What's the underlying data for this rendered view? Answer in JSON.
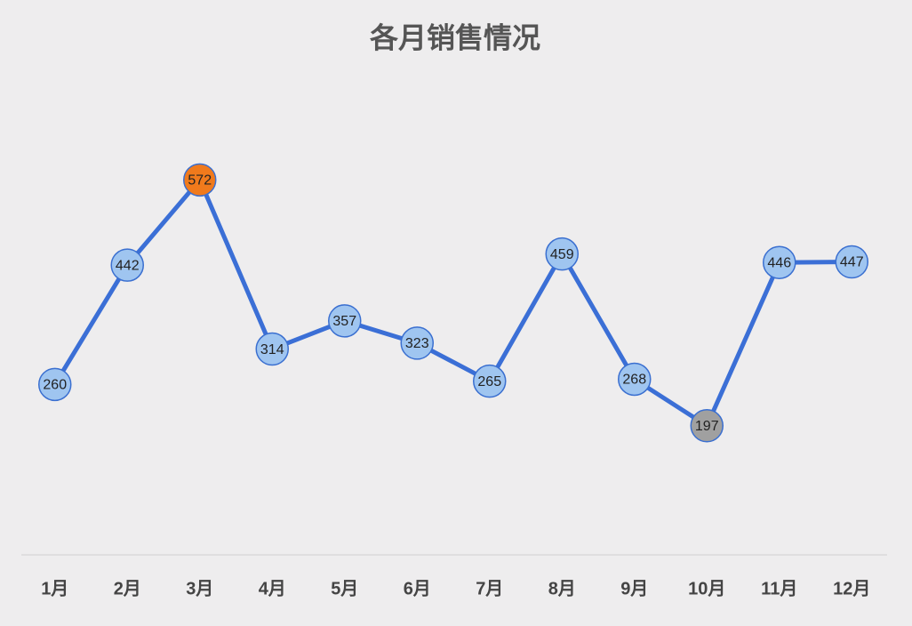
{
  "chart_data": {
    "type": "line",
    "title": "各月销售情况",
    "categories": [
      "1月",
      "2月",
      "3月",
      "4月",
      "5月",
      "6月",
      "7月",
      "8月",
      "9月",
      "10月",
      "11月",
      "12月"
    ],
    "values": [
      260,
      442,
      572,
      314,
      357,
      323,
      265,
      459,
      268,
      197,
      446,
      447
    ],
    "color": "#3b6fd6",
    "marker_colors": [
      "#9fc5f0",
      "#9fc5f0",
      "#f07a1c",
      "#9fc5f0",
      "#9fc5f0",
      "#9fc5f0",
      "#9fc5f0",
      "#9fc5f0",
      "#9fc5f0",
      "#a0a0a0",
      "#9fc5f0",
      "#9fc5f0"
    ],
    "ylim": [
      0,
      700
    ],
    "grid": false
  }
}
